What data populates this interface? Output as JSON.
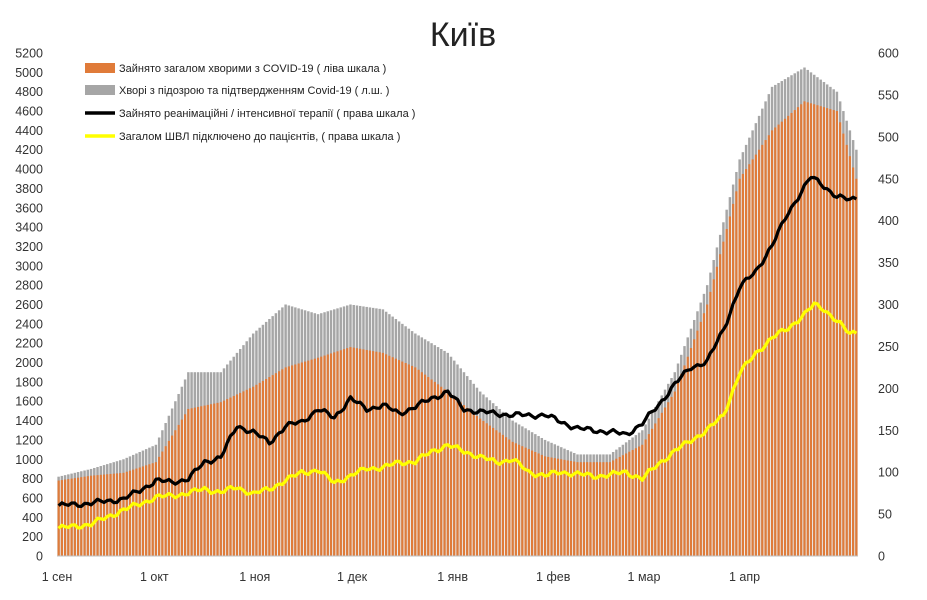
{
  "chart_data": {
    "type": "bar",
    "title": "Київ",
    "grid": false,
    "legend_placement": "top-left",
    "x_labels": [
      "1 сен",
      "1 окт",
      "1 ноя",
      "1 дек",
      "1 янв",
      "1 фев",
      "1 мар",
      "1 апр"
    ],
    "y_left": {
      "min": 0,
      "max": 5200,
      "step": 200
    },
    "y_right": {
      "min": 0,
      "max": 600,
      "step": 50
    },
    "series": [
      {
        "name": "Зайнято загалом хворими з COVID-19 ( ліва шкала )",
        "type": "bar",
        "axis": "left",
        "color": "#e07b39",
        "keyframes": [
          [
            0,
            780
          ],
          [
            10,
            830
          ],
          [
            20,
            860
          ],
          [
            30,
            970
          ],
          [
            40,
            1520
          ],
          [
            50,
            1590
          ],
          [
            60,
            1750
          ],
          [
            70,
            1950
          ],
          [
            80,
            2050
          ],
          [
            90,
            2160
          ],
          [
            100,
            2100
          ],
          [
            110,
            1950
          ],
          [
            120,
            1700
          ],
          [
            130,
            1420
          ],
          [
            140,
            1180
          ],
          [
            150,
            1030
          ],
          [
            160,
            970
          ],
          [
            170,
            970
          ],
          [
            180,
            1150
          ],
          [
            190,
            1700
          ],
          [
            200,
            2600
          ],
          [
            210,
            3900
          ],
          [
            220,
            4400
          ],
          [
            230,
            4700
          ],
          [
            240,
            4600
          ],
          [
            246,
            3900
          ]
        ]
      },
      {
        "name": "Хворі з підозрою та підтвердженням Covid-19 ( л.ш. )",
        "type": "bar",
        "axis": "left",
        "color": "#a6a6a6",
        "keyframes": [
          [
            0,
            820
          ],
          [
            10,
            900
          ],
          [
            20,
            1000
          ],
          [
            30,
            1150
          ],
          [
            40,
            1900
          ],
          [
            50,
            1900
          ],
          [
            60,
            2300
          ],
          [
            70,
            2600
          ],
          [
            80,
            2500
          ],
          [
            90,
            2600
          ],
          [
            100,
            2550
          ],
          [
            110,
            2300
          ],
          [
            120,
            2100
          ],
          [
            130,
            1700
          ],
          [
            140,
            1400
          ],
          [
            150,
            1200
          ],
          [
            160,
            1050
          ],
          [
            170,
            1050
          ],
          [
            180,
            1300
          ],
          [
            190,
            1900
          ],
          [
            200,
            2800
          ],
          [
            210,
            4100
          ],
          [
            220,
            4850
          ],
          [
            230,
            5050
          ],
          [
            240,
            4800
          ],
          [
            246,
            4200
          ]
        ]
      },
      {
        "name": "Зайнято реанімаційні / інтенсивної терапії ( права шкала )",
        "type": "line",
        "axis": "right",
        "color": "#000000",
        "keyframes": [
          [
            0,
            60
          ],
          [
            10,
            63
          ],
          [
            20,
            68
          ],
          [
            25,
            78
          ],
          [
            30,
            90
          ],
          [
            35,
            88
          ],
          [
            40,
            92
          ],
          [
            45,
            112
          ],
          [
            50,
            118
          ],
          [
            55,
            155
          ],
          [
            60,
            148
          ],
          [
            65,
            135
          ],
          [
            70,
            155
          ],
          [
            75,
            160
          ],
          [
            80,
            175
          ],
          [
            85,
            165
          ],
          [
            90,
            188
          ],
          [
            95,
            175
          ],
          [
            100,
            180
          ],
          [
            105,
            170
          ],
          [
            110,
            178
          ],
          [
            115,
            188
          ],
          [
            120,
            196
          ],
          [
            125,
            175
          ],
          [
            130,
            172
          ],
          [
            140,
            168
          ],
          [
            150,
            168
          ],
          [
            155,
            160
          ],
          [
            160,
            152
          ],
          [
            165,
            150
          ],
          [
            170,
            148
          ],
          [
            175,
            145
          ],
          [
            180,
            158
          ],
          [
            185,
            180
          ],
          [
            190,
            205
          ],
          [
            195,
            225
          ],
          [
            200,
            232
          ],
          [
            205,
            270
          ],
          [
            210,
            320
          ],
          [
            215,
            340
          ],
          [
            220,
            370
          ],
          [
            225,
            410
          ],
          [
            230,
            440
          ],
          [
            232,
            452
          ],
          [
            235,
            445
          ],
          [
            240,
            428
          ],
          [
            244,
            425
          ],
          [
            246,
            428
          ]
        ]
      },
      {
        "name": "Загалом ШВЛ  підключено до пацієнтів, ( права шкала )",
        "type": "line",
        "axis": "right",
        "color": "#ffff00",
        "keyframes": [
          [
            0,
            33
          ],
          [
            10,
            38
          ],
          [
            20,
            55
          ],
          [
            25,
            62
          ],
          [
            30,
            70
          ],
          [
            35,
            72
          ],
          [
            40,
            75
          ],
          [
            45,
            80
          ],
          [
            50,
            76
          ],
          [
            55,
            82
          ],
          [
            60,
            74
          ],
          [
            65,
            80
          ],
          [
            70,
            90
          ],
          [
            75,
            100
          ],
          [
            80,
            102
          ],
          [
            85,
            88
          ],
          [
            90,
            95
          ],
          [
            95,
            105
          ],
          [
            100,
            105
          ],
          [
            105,
            112
          ],
          [
            110,
            112
          ],
          [
            115,
            125
          ],
          [
            120,
            132
          ],
          [
            125,
            125
          ],
          [
            130,
            118
          ],
          [
            135,
            112
          ],
          [
            140,
            115
          ],
          [
            145,
            100
          ],
          [
            150,
            96
          ],
          [
            155,
            100
          ],
          [
            160,
            98
          ],
          [
            165,
            95
          ],
          [
            170,
            97
          ],
          [
            175,
            100
          ],
          [
            180,
            92
          ],
          [
            185,
            110
          ],
          [
            190,
            125
          ],
          [
            195,
            138
          ],
          [
            200,
            150
          ],
          [
            205,
            168
          ],
          [
            210,
            218
          ],
          [
            215,
            242
          ],
          [
            220,
            260
          ],
          [
            225,
            272
          ],
          [
            230,
            288
          ],
          [
            233,
            300
          ],
          [
            236,
            295
          ],
          [
            240,
            280
          ],
          [
            244,
            265
          ],
          [
            246,
            268
          ]
        ]
      }
    ]
  }
}
